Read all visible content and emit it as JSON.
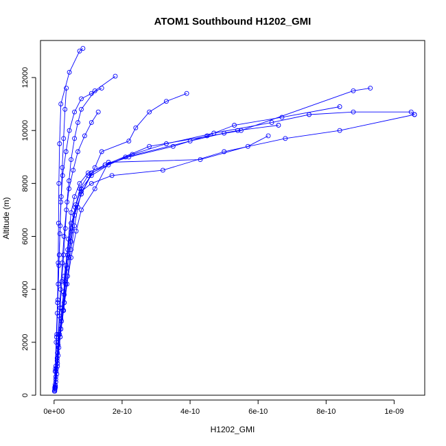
{
  "chart_data": {
    "type": "scatter",
    "title": "ATOM1 Southbound H1202_GMI",
    "xlabel": "H1202_GMI",
    "ylabel": "Altitude (m)",
    "xlim": [
      -4e-11,
      1.09e-09
    ],
    "ylim": [
      0,
      13400
    ],
    "xticks": [
      0,
      2e-10,
      4e-10,
      6e-10,
      8e-10,
      1e-09
    ],
    "xtick_labels": [
      "0e+00",
      "2e-10",
      "4e-10",
      "6e-10",
      "8e-10",
      "1e-09"
    ],
    "yticks": [
      0,
      2000,
      4000,
      6000,
      8000,
      10000,
      12000
    ],
    "ytick_labels": [
      "0",
      "2000",
      "4000",
      "6000",
      "8000",
      "10000",
      "12000"
    ],
    "grid": false,
    "series_color": "#0000ff",
    "series": [
      {
        "name": "",
        "x": [
          2e-12,
          5e-12,
          1e-11,
          2e-11,
          3e-11,
          3e-11,
          4e-11,
          5e-11,
          8e-11,
          1.2e-10,
          1.4e-10,
          2.2e-10,
          2.4e-10,
          2.8e-10,
          3.3e-10,
          3.9e-10
        ],
        "y": [
          200,
          700,
          1600,
          2500,
          3500,
          4500,
          5500,
          6500,
          7600,
          8600,
          9200,
          9600,
          10100,
          10700,
          11100,
          11400
        ]
      },
      {
        "name": "",
        "x": [
          3e-12,
          8e-12,
          1.4e-11,
          2.2e-11,
          3e-11,
          3.8e-11,
          5e-11,
          6e-11,
          8e-11,
          1.1e-10,
          2.1e-10,
          4e-10,
          5e-10,
          5.4e-10,
          6.6e-10
        ],
        "y": [
          250,
          800,
          1800,
          2800,
          3800,
          4800,
          5800,
          6800,
          7600,
          8400,
          9000,
          9600,
          9900,
          10000,
          10200
        ]
      },
      {
        "name": "",
        "x": [
          2e-12,
          6e-12,
          1.2e-11,
          2e-11,
          2.8e-11,
          3.5e-11,
          4.2e-11,
          5e-11,
          6e-11,
          7.5e-11,
          1e-10,
          1.5e-10,
          2.2e-10,
          3.5e-10,
          4.5e-10,
          5.3e-10,
          6.7e-10,
          8.4e-10
        ],
        "y": [
          300,
          900,
          1900,
          2900,
          3900,
          4900,
          5900,
          6900,
          7500,
          8000,
          8400,
          8700,
          9000,
          9400,
          9800,
          10200,
          10500,
          10900
        ]
      },
      {
        "name": "",
        "x": [
          4e-12,
          1e-11,
          1.8e-11,
          2.6e-11,
          3.4e-11,
          4.2e-11,
          5.2e-11,
          6.4e-11,
          7.6e-11,
          1e-10,
          1.5e-10,
          2.8e-10,
          5.5e-10,
          8.8e-10,
          9.3e-10
        ],
        "y": [
          350,
          1100,
          2200,
          3200,
          4200,
          5200,
          6200,
          7200,
          7800,
          8300,
          8700,
          9400,
          10000,
          11500,
          11600
        ]
      },
      {
        "name": "",
        "x": [
          3e-12,
          9e-12,
          1.6e-11,
          2.4e-11,
          3.2e-11,
          4e-11,
          5e-11,
          6.2e-11,
          8e-11,
          1.1e-10,
          1.6e-10,
          2.3e-10,
          3.3e-10,
          4.7e-10,
          6.4e-10,
          7.5e-10,
          8.8e-10,
          1.05e-09,
          1.06e-09
        ],
        "y": [
          400,
          1300,
          2300,
          3300,
          4300,
          5300,
          6300,
          7100,
          7800,
          8300,
          8700,
          9100,
          9500,
          9900,
          10300,
          10600,
          10700,
          10700,
          10600
        ]
      },
      {
        "name": "",
        "x": [
          5e-12,
          1.2e-11,
          2e-11,
          3e-11,
          4e-11,
          5e-11,
          6e-11,
          7e-11,
          8e-11,
          1.1e-10,
          1.7e-10,
          3.2e-10,
          5e-10,
          6.8e-10,
          8.4e-10,
          1.06e-09
        ],
        "y": [
          500,
          1500,
          2500,
          3500,
          4500,
          5500,
          6400,
          7100,
          7700,
          8000,
          8300,
          8500,
          9200,
          9700,
          10000,
          10600
        ]
      },
      {
        "name": "",
        "x": [
          4e-12,
          1e-11,
          1.8e-11,
          2.8e-11,
          3.8e-11,
          5e-11,
          6.5e-11,
          8e-11,
          1.2e-10,
          1.6e-10,
          4.3e-10,
          5.7e-10,
          6.3e-10
        ],
        "y": [
          300,
          1200,
          2200,
          3200,
          4200,
          5200,
          6200,
          7000,
          7800,
          8800,
          8900,
          9400,
          9800
        ]
      },
      {
        "name": "",
        "x": [
          2e-12,
          5e-12,
          9e-12,
          1.3e-11,
          1.8e-11,
          2.3e-11,
          2.8e-11,
          3.3e-11,
          3.8e-11,
          4.4e-11,
          5e-11,
          6e-11,
          7e-11,
          8e-11,
          1.2e-10,
          1.8e-10
        ],
        "y": [
          150,
          600,
          1400,
          2300,
          3300,
          4300,
          5300,
          6300,
          7300,
          8100,
          8900,
          9700,
          10300,
          10800,
          11500,
          12050
        ]
      },
      {
        "name": "",
        "x": [
          2e-12,
          4e-12,
          7e-12,
          1e-11,
          1.2e-11,
          1.3e-11,
          1.4e-11,
          1.6e-11,
          2e-11,
          4.5e-11,
          7.5e-11,
          8.5e-11
        ],
        "y": [
          200,
          1000,
          2200,
          3500,
          5000,
          6500,
          8000,
          9500,
          11000,
          12200,
          13000,
          13100
        ]
      },
      {
        "name": "",
        "x": [
          2e-12,
          5e-12,
          8e-12,
          1.1e-11,
          1.4e-11,
          1.7e-11,
          2e-11,
          2.5e-11,
          3.5e-11,
          4.5e-11,
          6e-11,
          8e-11,
          1.1e-10,
          1.4e-10
        ],
        "y": [
          250,
          1100,
          2300,
          3600,
          4900,
          6100,
          7300,
          8300,
          9200,
          10000,
          10700,
          11200,
          11400,
          11600
        ]
      },
      {
        "name": "",
        "x": [
          3e-12,
          7e-12,
          1.1e-11,
          1.5e-11,
          1.9e-11,
          2.4e-11,
          2.9e-11,
          3.6e-11,
          4.4e-11,
          5.6e-11,
          7e-11,
          9e-11,
          1.1e-10,
          1.3e-10
        ],
        "y": [
          300,
          1000,
          2000,
          3000,
          4000,
          5000,
          6000,
          7000,
          7800,
          8500,
          9200,
          9800,
          10300,
          10700
        ]
      },
      {
        "name": "",
        "x": [
          1e-12,
          3e-12,
          6e-12,
          9e-12,
          1.2e-11,
          1.5e-11,
          1.8e-11,
          2.1e-11,
          2.4e-11,
          2.8e-11,
          3.2e-11,
          3.6e-11
        ],
        "y": [
          150,
          900,
          2000,
          3100,
          4200,
          5300,
          6400,
          7500,
          8600,
          9700,
          10800,
          11600
        ]
      }
    ]
  }
}
